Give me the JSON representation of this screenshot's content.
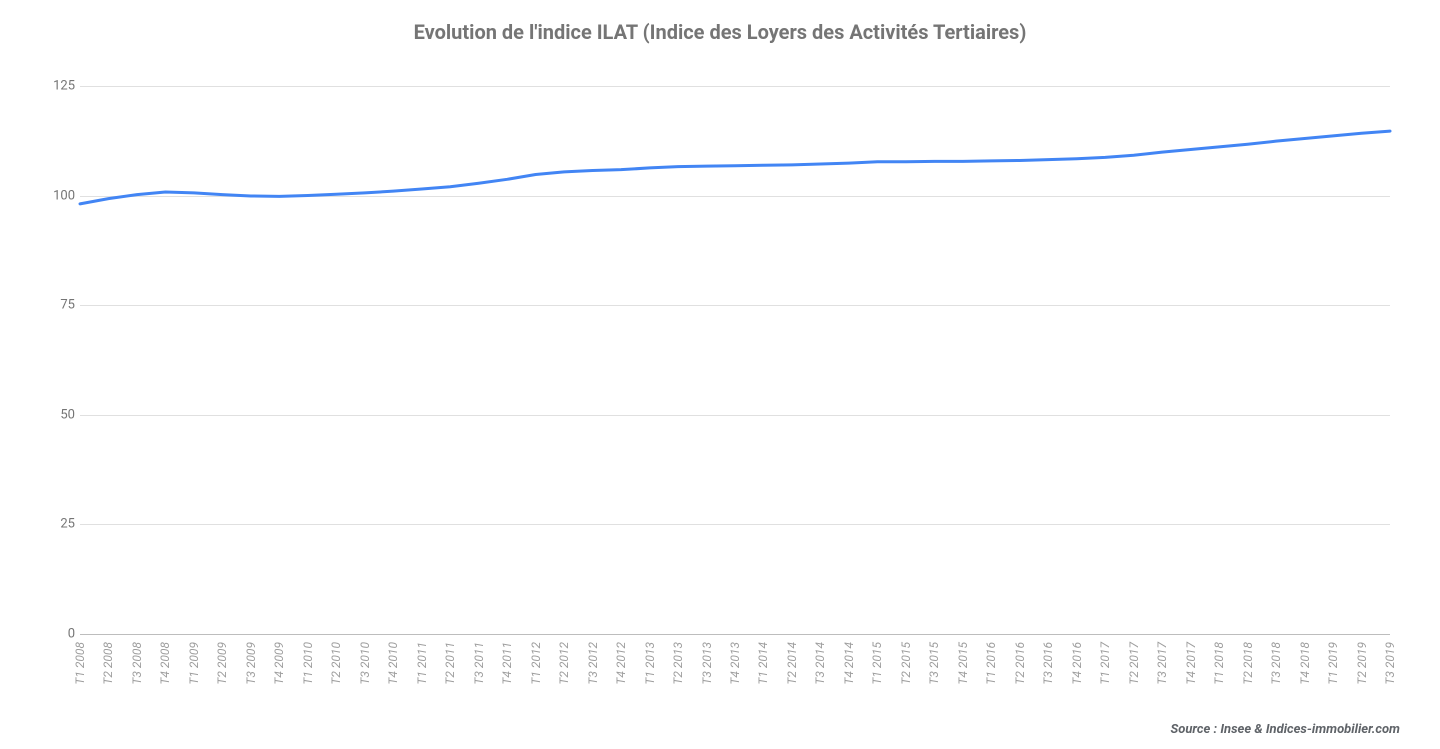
{
  "chart": {
    "type": "line",
    "title": "Evolution de l'indice ILAT (Indice des Loyers des Activités Tertiaires)",
    "title_fontsize": 20,
    "title_color": "#757575",
    "line_color": "#4285f4",
    "line_width": 3,
    "background_color": "#ffffff",
    "grid_color": "#e0e0e0",
    "axis_label_color": "#757575",
    "x_label_color": "#9e9e9e",
    "x_label_fontsize": 12,
    "y_label_fontsize": 13,
    "ylim": [
      0,
      130
    ],
    "yticks": [
      0,
      25,
      50,
      75,
      100,
      125
    ],
    "x_labels": [
      "T1 2008",
      "T2 2008",
      "T3 2008",
      "T4 2008",
      "T1 2009",
      "T2 2009",
      "T3 2009",
      "T4 2009",
      "T1 2010",
      "T2 2010",
      "T3 2010",
      "T4 2010",
      "T1 2011",
      "T2 2011",
      "T3 2011",
      "T4 2011",
      "T1 2012",
      "T2 2012",
      "T3 2012",
      "T4 2012",
      "T1 2013",
      "T2 2013",
      "T3 2013",
      "T4 2013",
      "T1 2014",
      "T2 2014",
      "T3 2014",
      "T4 2014",
      "T1 2015",
      "T2 2015",
      "T3 2015",
      "T4 2015",
      "T1 2016",
      "T2 2016",
      "T3 2016",
      "T4 2016",
      "T1 2017",
      "T2 2017",
      "T3 2017",
      "T4 2017",
      "T1 2018",
      "T2 2018",
      "T3 2018",
      "T4 2018",
      "T1 2019",
      "T2 2019",
      "T3 2019"
    ],
    "values": [
      98.1,
      99.3,
      100.2,
      100.8,
      100.6,
      100.2,
      99.9,
      99.8,
      100.0,
      100.3,
      100.6,
      101.0,
      101.5,
      102.0,
      102.8,
      103.7,
      104.8,
      105.4,
      105.7,
      105.9,
      106.3,
      106.6,
      106.7,
      106.8,
      106.9,
      107.0,
      107.2,
      107.4,
      107.7,
      107.7,
      107.8,
      107.8,
      107.9,
      108.0,
      108.2,
      108.4,
      108.7,
      109.2,
      109.9,
      110.5,
      111.1,
      111.7,
      112.4,
      113.0,
      113.6,
      114.2,
      114.7
    ]
  },
  "source_text": "Source : Insee & Indices-immobilier.com"
}
